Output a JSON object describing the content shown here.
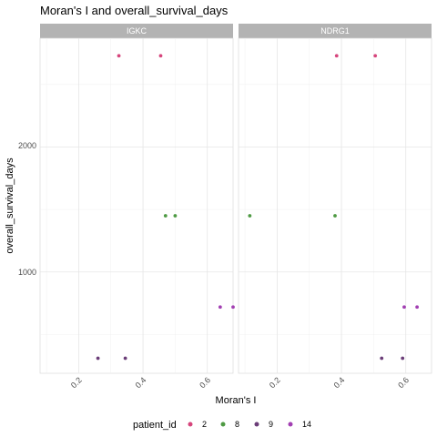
{
  "chart_data": {
    "type": "scatter",
    "title": "Moran's I and overall_survival_days",
    "xlabel": "Moran's I",
    "ylabel": "overall_survival_days",
    "x_ticks": [
      "0.2",
      "0.4",
      "0.6"
    ],
    "y_ticks": [
      "1000",
      "2000"
    ],
    "xlim": [
      0.08,
      0.68
    ],
    "ylim": [
      190,
      2870
    ],
    "grid": true,
    "legend_title": "patient_id",
    "legend_position": "bottom",
    "series": [
      {
        "name": "2",
        "color": "#d6457c"
      },
      {
        "name": "8",
        "color": "#4e9a43"
      },
      {
        "name": "9",
        "color": "#6b3d78"
      },
      {
        "name": "14",
        "color": "#a23fb2"
      }
    ],
    "facets": [
      {
        "label": "IGKC",
        "points": [
          {
            "series": "2",
            "x": 0.325,
            "y": 2730
          },
          {
            "series": "2",
            "x": 0.455,
            "y": 2730
          },
          {
            "series": "8",
            "x": 0.47,
            "y": 1450
          },
          {
            "series": "8",
            "x": 0.5,
            "y": 1450
          },
          {
            "series": "14",
            "x": 0.64,
            "y": 720
          },
          {
            "series": "14",
            "x": 0.68,
            "y": 720
          },
          {
            "series": "9",
            "x": 0.26,
            "y": 310
          },
          {
            "series": "9",
            "x": 0.345,
            "y": 310
          }
        ]
      },
      {
        "label": "NDRG1",
        "points": [
          {
            "series": "2",
            "x": 0.385,
            "y": 2730
          },
          {
            "series": "2",
            "x": 0.505,
            "y": 2730
          },
          {
            "series": "8",
            "x": 0.115,
            "y": 1450
          },
          {
            "series": "8",
            "x": 0.38,
            "y": 1450
          },
          {
            "series": "14",
            "x": 0.595,
            "y": 720
          },
          {
            "series": "14",
            "x": 0.635,
            "y": 720
          },
          {
            "series": "9",
            "x": 0.525,
            "y": 310
          },
          {
            "series": "9",
            "x": 0.59,
            "y": 310
          }
        ]
      }
    ]
  }
}
